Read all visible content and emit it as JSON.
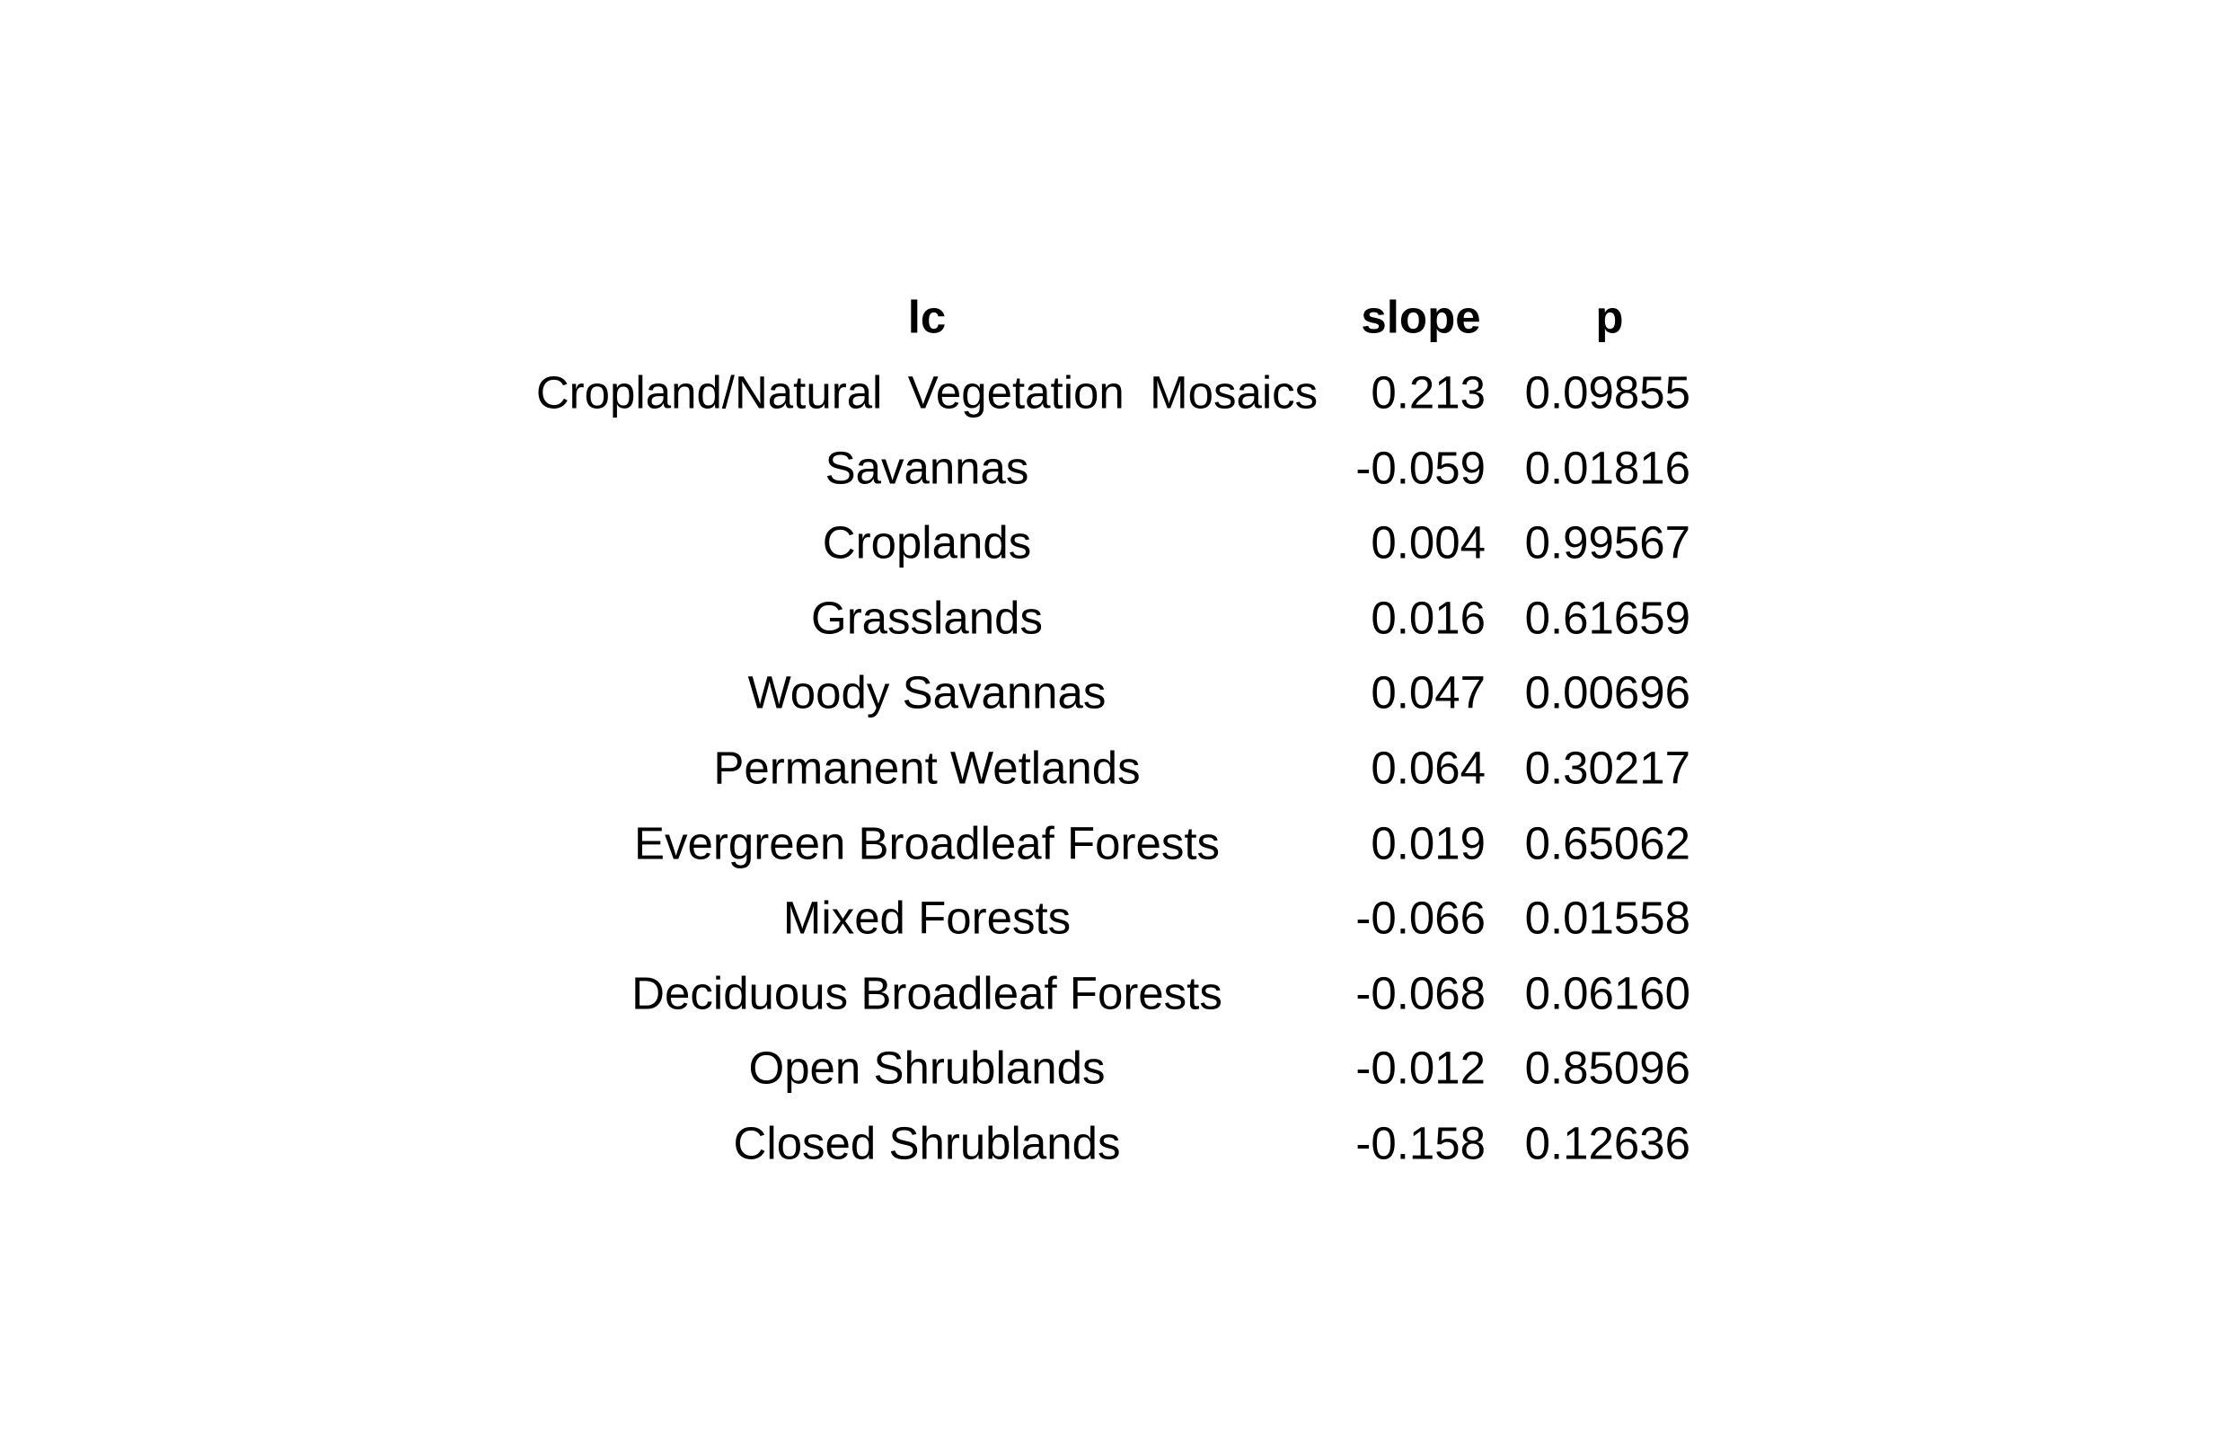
{
  "chart_data": {
    "type": "table",
    "columns": [
      "lc",
      "slope",
      "p"
    ],
    "rows": [
      {
        "lc": "Cropland/Natural  Vegetation  Mosaics",
        "slope": "0.213",
        "p": "0.09855"
      },
      {
        "lc": "Savannas",
        "slope": "-0.059",
        "p": "0.01816"
      },
      {
        "lc": "Croplands",
        "slope": "0.004",
        "p": "0.99567"
      },
      {
        "lc": "Grasslands",
        "slope": "0.016",
        "p": "0.61659"
      },
      {
        "lc": "Woody Savannas",
        "slope": "0.047",
        "p": "0.00696"
      },
      {
        "lc": "Permanent Wetlands",
        "slope": "0.064",
        "p": "0.30217"
      },
      {
        "lc": "Evergreen Broadleaf Forests",
        "slope": "0.019",
        "p": "0.65062"
      },
      {
        "lc": "Mixed Forests",
        "slope": "-0.066",
        "p": "0.01558"
      },
      {
        "lc": "Deciduous Broadleaf Forests",
        "slope": "-0.068",
        "p": "0.06160"
      },
      {
        "lc": "Open Shrublands",
        "slope": "-0.012",
        "p": "0.85096"
      },
      {
        "lc": "Closed Shrublands",
        "slope": "-0.158",
        "p": "0.12636"
      }
    ],
    "header_bold": true,
    "grid": false
  }
}
